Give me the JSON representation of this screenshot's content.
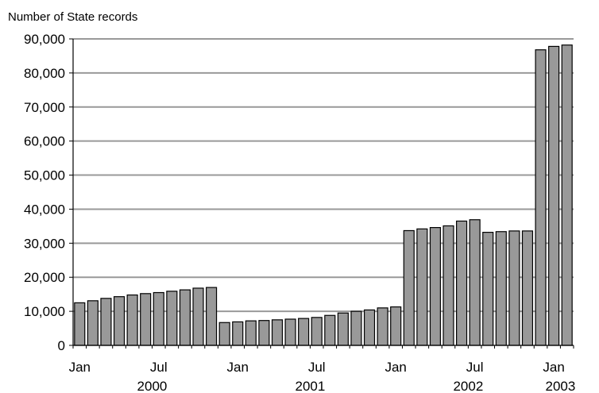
{
  "chart_data": {
    "type": "bar",
    "title": "",
    "xlabel": "",
    "ylabel": "Number of State records",
    "ylim": [
      0,
      90000
    ],
    "grid": true,
    "legend": "none",
    "bar_color": "#999999",
    "y_ticks": [
      {
        "value": 0,
        "label": "0"
      },
      {
        "value": 10000,
        "label": "10,000"
      },
      {
        "value": 20000,
        "label": "20,000"
      },
      {
        "value": 30000,
        "label": "30,000"
      },
      {
        "value": 40000,
        "label": "40,000"
      },
      {
        "value": 50000,
        "label": "50,000"
      },
      {
        "value": 60000,
        "label": "60,000"
      },
      {
        "value": 70000,
        "label": "70,000"
      },
      {
        "value": 80000,
        "label": "80,000"
      },
      {
        "value": 90000,
        "label": "90,000"
      }
    ],
    "categories": [
      "2000-01",
      "2000-02",
      "2000-03",
      "2000-04",
      "2000-05",
      "2000-06",
      "2000-07",
      "2000-08",
      "2000-09",
      "2000-10",
      "2000-11",
      "2000-12",
      "2001-01",
      "2001-02",
      "2001-03",
      "2001-04",
      "2001-05",
      "2001-06",
      "2001-07",
      "2001-08",
      "2001-09",
      "2001-10",
      "2001-11",
      "2001-12",
      "2002-01",
      "2002-02",
      "2002-03",
      "2002-04",
      "2002-05",
      "2002-06",
      "2002-07",
      "2002-08",
      "2002-09",
      "2002-10",
      "2002-11",
      "2002-12",
      "2003-01",
      "2003-02"
    ],
    "values": [
      12500,
      13100,
      13800,
      14300,
      14800,
      15200,
      15500,
      15900,
      16300,
      16800,
      17000,
      6700,
      6900,
      7200,
      7300,
      7500,
      7700,
      7900,
      8200,
      8800,
      9500,
      10000,
      10400,
      11000,
      11300,
      33700,
      34200,
      34600,
      35100,
      36500,
      36900,
      33200,
      33400,
      33600,
      33600,
      86800,
      87800,
      88200
    ],
    "x_ticks": [
      {
        "index": 0,
        "label": "Jan"
      },
      {
        "index": 6,
        "label": "Jul"
      },
      {
        "index": 12,
        "label": "Jan"
      },
      {
        "index": 18,
        "label": "Jul"
      },
      {
        "index": 24,
        "label": "Jan"
      },
      {
        "index": 30,
        "label": "Jul"
      },
      {
        "index": 36,
        "label": "Jan"
      }
    ],
    "x_groups": [
      {
        "label": "2000",
        "start": 0,
        "end": 11
      },
      {
        "label": "2001",
        "start": 12,
        "end": 23
      },
      {
        "label": "2002",
        "start": 24,
        "end": 35
      },
      {
        "label": "2003",
        "start": 36,
        "end": 37
      }
    ]
  }
}
